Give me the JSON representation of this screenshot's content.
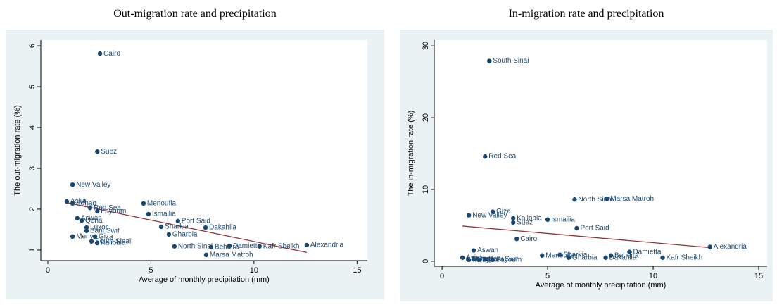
{
  "chart_data": [
    {
      "type": "scatter",
      "title": "Out-migration rate and precipitation",
      "xlabel": "Average of monthly precipitation (mm)",
      "ylabel": "The out-migration rate (%)",
      "xlim": [
        -0.34,
        15.5
      ],
      "ylim": [
        0.74,
        6.14
      ],
      "xticks": [
        0,
        5,
        10,
        15
      ],
      "yticks": [
        1,
        2,
        3,
        4,
        5,
        6
      ],
      "color": "#1a476f",
      "fit_color": "#90353b",
      "points": {
        "labels": [
          "Cairo",
          "Suez",
          "New Valley",
          "Asiut",
          "Sohag",
          "Red Sea",
          "Fayoum",
          "Menoufia",
          "Ismailia",
          "Port Said",
          "Sharkia",
          "Dakahlia",
          "Gharbia",
          "Aswan",
          "Qena",
          "Luxor",
          "Bani Swif",
          "Menya",
          "Giza",
          "South Sinai",
          "Kaliobia",
          "North Sinai",
          "Beheira",
          "Damietta",
          "Marsa Matroh",
          "Kafr Sheikh",
          "Alexandria"
        ],
        "x": [
          2.53,
          2.4,
          1.2,
          0.92,
          1.2,
          2.05,
          2.4,
          4.64,
          4.88,
          6.31,
          5.5,
          7.65,
          5.87,
          1.43,
          1.64,
          1.88,
          1.88,
          1.2,
          2.29,
          2.12,
          2.39,
          6.14,
          7.92,
          8.81,
          7.68,
          10.27,
          12.56
        ],
        "y": [
          5.81,
          3.41,
          2.6,
          2.19,
          2.14,
          2.03,
          1.95,
          2.14,
          1.88,
          1.71,
          1.57,
          1.55,
          1.38,
          1.78,
          1.72,
          1.55,
          1.47,
          1.33,
          1.33,
          1.21,
          1.17,
          1.09,
          1.07,
          1.1,
          0.88,
          1.09,
          1.12
        ]
      },
      "fit": {
        "x": [
          0.92,
          12.56
        ],
        "y": [
          2.16,
          0.94
        ]
      }
    },
    {
      "type": "scatter",
      "title": "In-migration rate and precipitation",
      "xlabel": "Average of monthly precipitation (mm)",
      "ylabel": "The in-migration rate (%)",
      "xlim": [
        -0.37,
        15.4
      ],
      "ylim": [
        -0.7,
        30.8
      ],
      "xticks": [
        0,
        5,
        10,
        15
      ],
      "yticks": [
        0,
        10,
        20,
        30
      ],
      "color": "#1a476f",
      "fit_color": "#90353b",
      "points": {
        "labels": [
          "South Sinai",
          "Red Sea",
          "North Sinai",
          "Marsa Matroh",
          "New Valley",
          "Giza",
          "Kaliobia",
          "Suez",
          "Ismailia",
          "Port Said",
          "Cairo",
          "Aswan",
          "Damietta",
          "Menoufia",
          "Sharkia",
          "Beheira",
          "Gharbia",
          "Dakahlia",
          "Kafr Sheikh",
          "Alexandria",
          "Asiut",
          "Sohag",
          "Menya",
          "Qena",
          "Luxor",
          "Bani Swif",
          "Fayoum"
        ],
        "x": [
          2.24,
          2.04,
          6.28,
          7.81,
          1.27,
          2.4,
          3.37,
          3.37,
          5.0,
          6.38,
          3.54,
          1.5,
          8.88,
          4.74,
          5.58,
          8.0,
          6.0,
          7.75,
          10.45,
          12.69,
          0.97,
          1.23,
          1.27,
          1.5,
          1.74,
          2.04,
          2.4
        ],
        "y": [
          27.9,
          14.6,
          8.6,
          8.7,
          6.4,
          6.9,
          6.0,
          5.4,
          5.8,
          4.6,
          3.1,
          1.5,
          1.3,
          0.8,
          0.9,
          0.8,
          0.5,
          0.5,
          0.5,
          2.0,
          0.5,
          0.3,
          0.2,
          0.3,
          0.2,
          0.3,
          0.2
        ]
      },
      "fit": {
        "x": [
          0.97,
          12.69
        ],
        "y": [
          4.9,
          1.9
        ]
      }
    }
  ]
}
